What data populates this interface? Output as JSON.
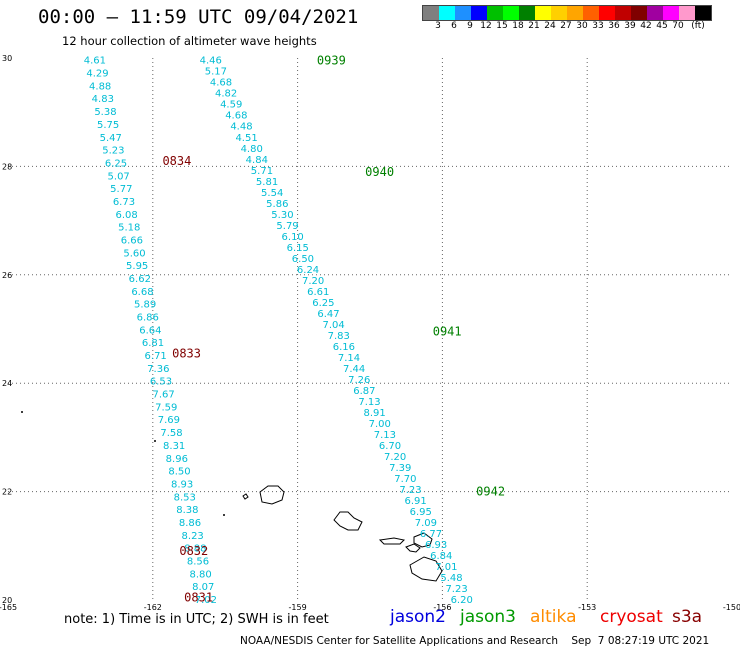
{
  "header": {
    "title": "00:00 – 11:59 UTC 09/04/2021",
    "subtitle": "12 hour collection of altimeter wave heights"
  },
  "legend": {
    "colors": [
      "#7f7f7f",
      "#00ffff",
      "#1e90ff",
      "#0000ff",
      "#00c000",
      "#00ff00",
      "#008000",
      "#ffff00",
      "#ffd000",
      "#ffa500",
      "#ff6000",
      "#ff0000",
      "#c00000",
      "#800000",
      "#a000a0",
      "#ff00ff",
      "#ff99cc",
      "#000000"
    ],
    "labels": [
      "3",
      "6",
      "9",
      "12",
      "15",
      "18",
      "21",
      "24",
      "27",
      "30",
      "33",
      "36",
      "39",
      "42",
      "45",
      "70",
      "(ft)"
    ]
  },
  "chart_data": {
    "type": "scatter",
    "xlim": [
      -165,
      -150
    ],
    "ylim": [
      20,
      30
    ],
    "x_ticks": [
      "-165",
      "-162",
      "-159",
      "-156",
      "-153",
      "-150"
    ],
    "y_ticks": [
      "30",
      "28",
      "26",
      "24",
      "22",
      "20"
    ],
    "grid": true,
    "swh_color": "#00bcd4",
    "tracks": [
      {
        "name": "track-west",
        "x_start": -163.2,
        "x_end": -160.9,
        "values": [
          "4.61",
          "4.29",
          "4.88",
          "4.83",
          "5.38",
          "5.75",
          "5.47",
          "5.23",
          "6.25",
          "5.07",
          "5.77",
          "6.73",
          "6.08",
          "5.18",
          "6.66",
          "5.60",
          "5.95",
          "6.62",
          "6.68",
          "5.89",
          "6.86",
          "6.64",
          "6.81",
          "6.71",
          "7.36",
          "6.53",
          "7.67",
          "7.59",
          "7.69",
          "7.58",
          "8.31",
          "8.96",
          "8.50",
          "8.93",
          "8.53",
          "8.38",
          "8.86",
          "8.23",
          "8.88",
          "8.56",
          "8.80",
          "8.07",
          "7.02"
        ]
      },
      {
        "name": "track-east",
        "x_start": -160.8,
        "x_end": -155.6,
        "values": [
          "4.46",
          "5.17",
          "4.68",
          "4.82",
          "4.59",
          "4.68",
          "4.48",
          "4.51",
          "4.80",
          "4.84",
          "5.71",
          "5.81",
          "5.54",
          "5.86",
          "5.30",
          "5.79",
          "6.10",
          "6.15",
          "6.50",
          "6.24",
          "7.20",
          "6.61",
          "6.25",
          "6.47",
          "7.04",
          "7.83",
          "6.16",
          "7.14",
          "7.44",
          "7.26",
          "6.87",
          "7.13",
          "8.91",
          "7.00",
          "7.13",
          "6.70",
          "7.20",
          "7.39",
          "7.70",
          "7.23",
          "6.91",
          "6.95",
          "7.09",
          "6.77",
          "6.93",
          "6.84",
          "7.01",
          "5.48",
          "7.23",
          "6.20"
        ]
      }
    ],
    "time_labels": [
      {
        "text": "0939",
        "x": -158.6,
        "y": 29.95,
        "color": "#008000"
      },
      {
        "text": "0940",
        "x": -157.6,
        "y": 27.9,
        "color": "#008000"
      },
      {
        "text": "0941",
        "x": -156.2,
        "y": 24.95,
        "color": "#008000"
      },
      {
        "text": "0942",
        "x": -155.3,
        "y": 22.0,
        "color": "#008000"
      },
      {
        "text": "0834",
        "x": -161.8,
        "y": 28.1,
        "color": "#800000"
      },
      {
        "text": "0833",
        "x": -161.6,
        "y": 24.55,
        "color": "#800000"
      },
      {
        "text": "0832",
        "x": -161.45,
        "y": 20.9,
        "color": "#800000"
      },
      {
        "text": "0831",
        "x": -161.35,
        "y": 20.05,
        "color": "#800000"
      }
    ]
  },
  "footer": {
    "note": "note: 1) Time is in UTC; 2) SWH is in feet",
    "satellites": [
      {
        "name": "jason2",
        "color": "#0000dd"
      },
      {
        "name": "jason3",
        "color": "#009900"
      },
      {
        "name": "altika",
        "color": "#ff8c00"
      },
      {
        "name": "cryosat",
        "color": "#ee0000"
      },
      {
        "name": "s3a",
        "color": "#880000"
      }
    ],
    "credit": "NOAA/NESDIS Center for Satellite Applications and Research    Sep  7 08:27:19 UTC 2021"
  }
}
